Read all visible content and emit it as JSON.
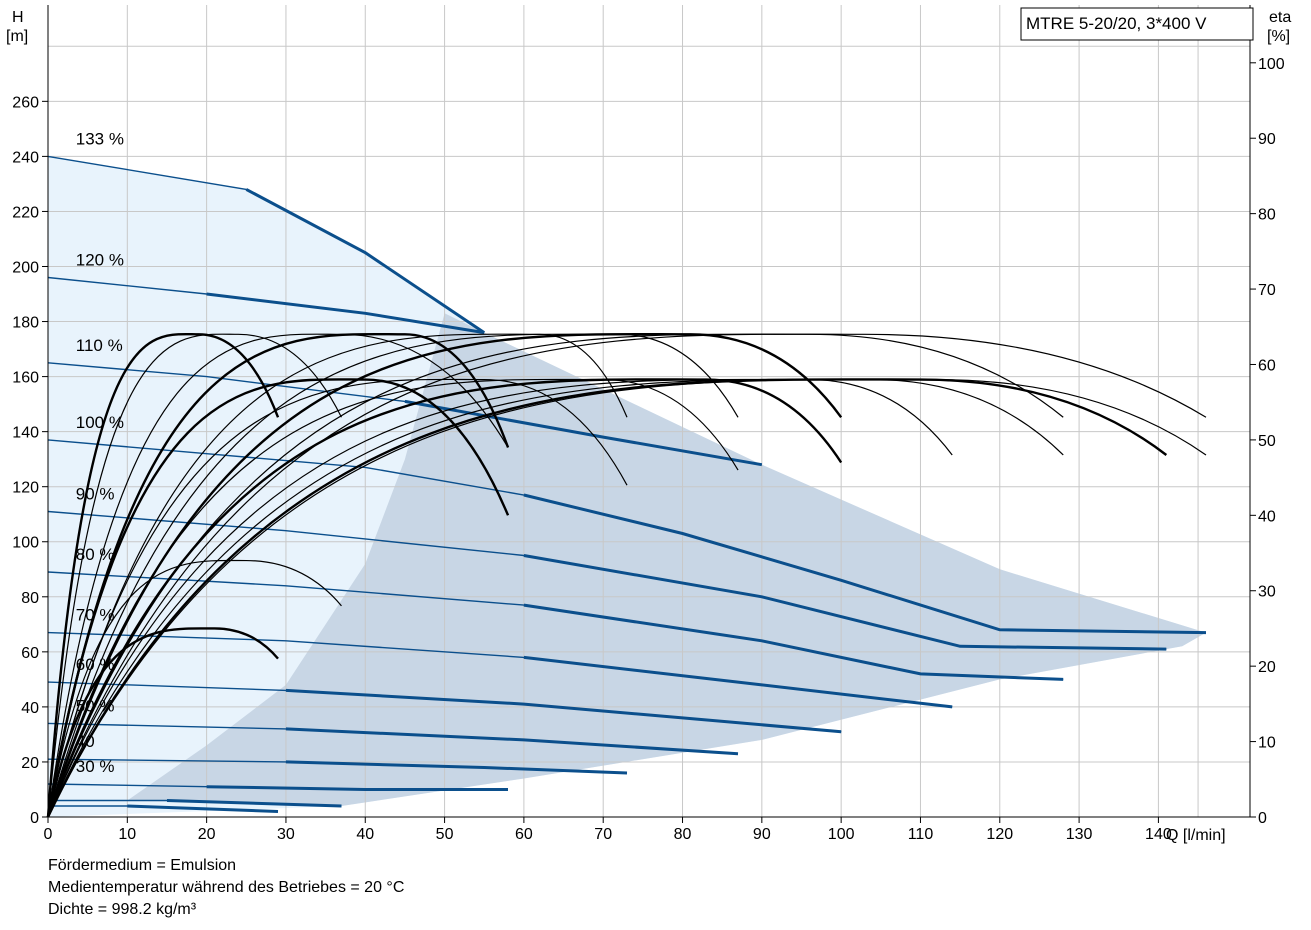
{
  "chart_data": {
    "type": "line",
    "title": "MTRE 5-20/20, 3*400 V",
    "x_axis": {
      "label": "Q [l/min]",
      "range": [
        0,
        146
      ],
      "ticks": [
        0,
        10,
        20,
        30,
        40,
        50,
        60,
        70,
        80,
        90,
        100,
        110,
        120,
        130,
        140
      ]
    },
    "y_left": {
      "label_top": "H",
      "label_unit": "[m]",
      "range": [
        0,
        295
      ],
      "ticks": [
        0,
        20,
        40,
        60,
        80,
        100,
        120,
        140,
        160,
        180,
        200,
        220,
        240,
        260
      ]
    },
    "y_right": {
      "label_top": "eta",
      "label_unit": "[%]",
      "ticks": [
        0,
        10,
        20,
        30,
        40,
        50,
        60,
        70,
        80,
        90,
        100
      ]
    },
    "grid": true,
    "speed_curves": [
      {
        "label": "133 %",
        "points": [
          [
            0,
            240
          ],
          [
            25,
            228
          ],
          [
            40,
            205
          ],
          [
            55,
            176
          ]
        ]
      },
      {
        "label": "120 %",
        "points": [
          [
            0,
            196
          ],
          [
            20,
            190
          ],
          [
            40,
            183
          ],
          [
            55,
            176
          ]
        ]
      },
      {
        "label": "110 %",
        "points": [
          [
            0,
            165
          ],
          [
            20,
            160
          ],
          [
            45,
            151
          ],
          [
            70,
            138
          ],
          [
            90,
            128
          ]
        ]
      },
      {
        "label": "100 %",
        "points": [
          [
            0,
            137
          ],
          [
            20,
            132
          ],
          [
            40,
            127
          ],
          [
            60,
            117
          ],
          [
            80,
            103
          ],
          [
            100,
            86
          ],
          [
            120,
            68
          ],
          [
            146,
            67
          ]
        ]
      },
      {
        "label": "90 %",
        "points": [
          [
            0,
            111
          ],
          [
            30,
            104
          ],
          [
            60,
            95
          ],
          [
            90,
            80
          ],
          [
            115,
            62
          ],
          [
            141,
            61
          ]
        ]
      },
      {
        "label": "80 %",
        "points": [
          [
            0,
            89
          ],
          [
            30,
            84
          ],
          [
            60,
            77
          ],
          [
            90,
            64
          ],
          [
            110,
            52
          ],
          [
            128,
            50
          ]
        ]
      },
      {
        "label": "70 %",
        "points": [
          [
            0,
            67
          ],
          [
            30,
            64
          ],
          [
            60,
            58
          ],
          [
            90,
            48
          ],
          [
            114,
            40
          ]
        ]
      },
      {
        "label": "60 %",
        "points": [
          [
            0,
            49
          ],
          [
            30,
            46
          ],
          [
            60,
            41
          ],
          [
            80,
            36
          ],
          [
            100,
            31
          ]
        ]
      },
      {
        "label": "50 %",
        "points": [
          [
            0,
            34
          ],
          [
            30,
            32
          ],
          [
            60,
            28
          ],
          [
            87,
            23
          ]
        ]
      },
      {
        "label": "40",
        "points": [
          [
            0,
            21
          ],
          [
            30,
            20
          ],
          [
            55,
            18
          ],
          [
            73,
            16
          ]
        ]
      },
      {
        "label": "30 %",
        "points": [
          [
            0,
            12
          ],
          [
            20,
            11
          ],
          [
            40,
            10
          ],
          [
            58,
            10
          ]
        ]
      },
      {
        "label": "",
        "points": [
          [
            0,
            6
          ],
          [
            15,
            6
          ],
          [
            37,
            4
          ]
        ]
      },
      {
        "label": "",
        "points": [
          [
            0,
            4
          ],
          [
            10,
            4
          ],
          [
            29,
            2
          ]
        ]
      }
    ],
    "efficiency_peaks": [
      {
        "x": 19,
        "y": 64,
        "x_end": 29,
        "y_end": 53
      },
      {
        "x": 24,
        "y": 64,
        "x_end": 37,
        "y_end": 53
      },
      {
        "x": 37,
        "y": 64,
        "x_end": 58,
        "y_end": 49
      },
      {
        "x": 45,
        "y": 64,
        "x_end": 58,
        "y_end": 49
      },
      {
        "x": 62,
        "y": 64,
        "x_end": 73,
        "y_end": 53
      },
      {
        "x": 72,
        "y": 64,
        "x_end": 87,
        "y_end": 53
      },
      {
        "x": 81,
        "y": 64,
        "x_end": 100,
        "y_end": 53
      },
      {
        "x": 96,
        "y": 64,
        "x_end": 128,
        "y_end": 53
      },
      {
        "x": 103,
        "y": 64,
        "x_end": 146,
        "y_end": 53
      },
      {
        "x": 40,
        "y": 58,
        "x_end": 58,
        "y_end": 40
      },
      {
        "x": 55,
        "y": 58,
        "x_end": 73,
        "y_end": 44
      },
      {
        "x": 70,
        "y": 58,
        "x_end": 87,
        "y_end": 46
      },
      {
        "x": 83,
        "y": 58,
        "x_end": 100,
        "y_end": 47
      },
      {
        "x": 96,
        "y": 58,
        "x_end": 114,
        "y_end": 48
      },
      {
        "x": 104,
        "y": 58,
        "x_end": 128,
        "y_end": 48
      },
      {
        "x": 110,
        "y": 58,
        "x_end": 141,
        "y_end": 48
      },
      {
        "x": 112,
        "y": 58,
        "x_end": 146,
        "y_end": 48
      },
      {
        "x": 25,
        "y": 34,
        "x_end": 37,
        "y_end": 28
      },
      {
        "x": 21,
        "y": 25,
        "x_end": 29,
        "y_end": 21
      }
    ]
  },
  "notes": [
    "Fördermedium = Emulsion",
    "Medientemperatur während des Betriebes = 20 °C",
    "Dichte = 998.2 kg/m³"
  ],
  "colors": {
    "speed_line": "#0b4f8c",
    "eff_line": "#000000",
    "light_fill": "#e8f3fc",
    "grey_fill": "#c8d6e5",
    "grid": "#c8c8c8"
  }
}
